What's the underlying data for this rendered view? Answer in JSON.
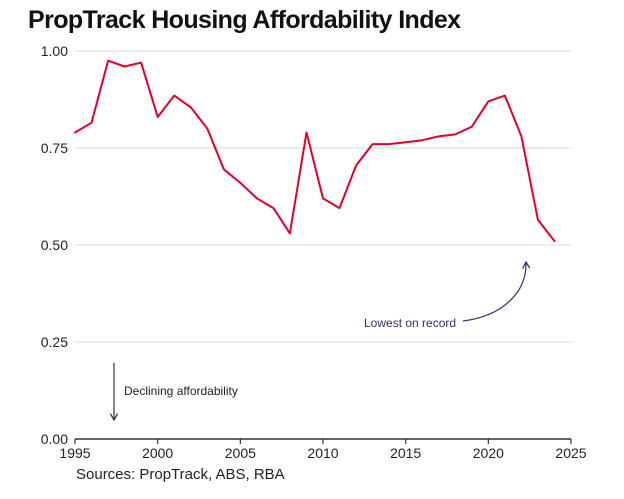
{
  "colors": {
    "line": "#e4002b",
    "annotation": "#3d2a73",
    "grid": "#d9d9d9",
    "axis": "#333333",
    "text": "#222222"
  },
  "chart_data": {
    "type": "line",
    "title": "PropTrack Housing Affordability Index",
    "xlabel": "",
    "ylabel": "",
    "xlim": [
      1995,
      2025
    ],
    "ylim": [
      0.0,
      1.0
    ],
    "xticks": [
      1995,
      2000,
      2005,
      2010,
      2015,
      2020,
      2025
    ],
    "yticks": [
      "0.00",
      "0.25",
      "0.50",
      "0.75",
      "1.00"
    ],
    "grid": true,
    "series": [
      {
        "name": "Housing Affordability Index",
        "x": [
          1995,
          1996,
          1997,
          1998,
          1999,
          2000,
          2001,
          2002,
          2003,
          2004,
          2005,
          2006,
          2007,
          2008,
          2009,
          2010,
          2011,
          2012,
          2013,
          2014,
          2015,
          2016,
          2017,
          2018,
          2019,
          2020,
          2021,
          2022,
          2023,
          2024
        ],
        "y": [
          0.79,
          0.815,
          0.975,
          0.96,
          0.97,
          0.83,
          0.885,
          0.855,
          0.8,
          0.695,
          0.66,
          0.62,
          0.595,
          0.53,
          0.79,
          0.62,
          0.595,
          0.705,
          0.76,
          0.76,
          0.765,
          0.77,
          0.78,
          0.785,
          0.805,
          0.87,
          0.885,
          0.78,
          0.565,
          0.51
        ]
      }
    ],
    "annotations": [
      {
        "text": "Lowest on record",
        "target_x": 2024,
        "target_y": 0.51
      },
      {
        "text": "Declining affordability"
      }
    ]
  },
  "footer": {
    "source": "Sources: PropTrack, ABS, RBA"
  }
}
